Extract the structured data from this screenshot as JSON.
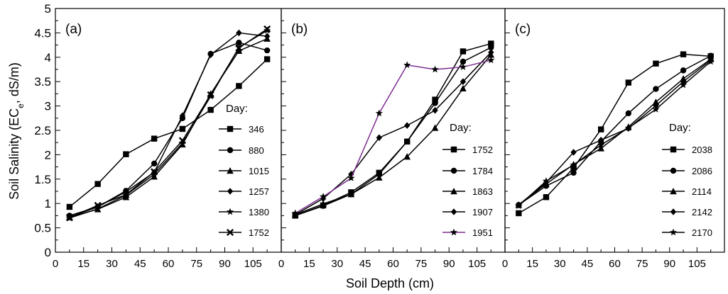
{
  "figure": {
    "ylabel_prefix": "Soil Salinity (EC",
    "ylabel_sub": "e",
    "ylabel_suffix": ", dS/m)",
    "xlabel": "Soil Depth (cm)"
  },
  "chart_data": [
    {
      "type": "line",
      "panel_label": "(a)",
      "legend_title": "Day:",
      "legend_position": "right-middle",
      "xlim": [
        0,
        120
      ],
      "ylim": [
        0,
        5
      ],
      "x_ticks": [
        0,
        15,
        30,
        45,
        60,
        75,
        90,
        105
      ],
      "y_ticks": [
        0,
        0.5,
        1,
        1.5,
        2,
        2.5,
        3,
        3.5,
        4,
        4.5,
        5
      ],
      "y_tick_labels": [
        "0",
        "0.5",
        "1",
        "1.5",
        "2",
        "2.5",
        "3",
        "3.5",
        "4",
        "4.5",
        "5"
      ],
      "x": [
        7.5,
        22.5,
        37.5,
        52.5,
        67.5,
        82.5,
        97.5,
        112.5
      ],
      "series": [
        {
          "name": "346",
          "marker": "square",
          "color": "#000000",
          "values": [
            0.93,
            1.4,
            2.01,
            2.33,
            2.53,
            2.92,
            3.41,
            3.96
          ]
        },
        {
          "name": "880",
          "marker": "circle",
          "color": "#000000",
          "values": [
            0.75,
            0.93,
            1.26,
            1.82,
            2.75,
            4.07,
            4.3,
            4.14
          ]
        },
        {
          "name": "1015",
          "marker": "triangle",
          "color": "#000000",
          "values": [
            0.72,
            0.88,
            1.13,
            1.55,
            2.21,
            3.25,
            4.13,
            4.38
          ]
        },
        {
          "name": "1257",
          "marker": "diamond",
          "color": "#000000",
          "values": [
            0.72,
            0.93,
            1.24,
            1.64,
            2.8,
            4.05,
            4.5,
            4.43
          ]
        },
        {
          "name": "1380",
          "marker": "star",
          "color": "#000000",
          "values": [
            0.7,
            0.89,
            1.17,
            1.6,
            2.24,
            3.2,
            4.2,
            4.55
          ]
        },
        {
          "name": "1752",
          "marker": "x",
          "color": "#000000",
          "values": [
            0.71,
            0.96,
            1.18,
            1.65,
            2.29,
            3.23,
            4.19,
            4.58
          ]
        }
      ]
    },
    {
      "type": "line",
      "panel_label": "(b)",
      "legend_title": "Day:",
      "legend_position": "right-middle",
      "xlim": [
        0,
        120
      ],
      "ylim": [
        0,
        5
      ],
      "x_ticks": [
        0,
        15,
        30,
        45,
        60,
        75,
        90,
        105
      ],
      "x": [
        7.5,
        22.5,
        37.5,
        52.5,
        67.5,
        82.5,
        97.5,
        112.5
      ],
      "series": [
        {
          "name": "1752",
          "marker": "square",
          "color": "#000000",
          "values": [
            0.75,
            0.96,
            1.23,
            1.63,
            2.27,
            3.13,
            4.12,
            4.28
          ]
        },
        {
          "name": "1784",
          "marker": "circle",
          "color": "#000000",
          "values": [
            0.75,
            0.95,
            1.19,
            1.6,
            2.27,
            3.06,
            3.91,
            4.2
          ]
        },
        {
          "name": "1863",
          "marker": "triangle",
          "color": "#000000",
          "values": [
            0.77,
            0.99,
            1.19,
            1.53,
            1.96,
            2.55,
            3.36,
            4.05
          ]
        },
        {
          "name": "1907",
          "marker": "diamond",
          "color": "#000000",
          "values": [
            0.77,
            1.1,
            1.6,
            2.35,
            2.6,
            2.91,
            3.5,
            4.1
          ]
        },
        {
          "name": "1951",
          "marker": "star",
          "color": "#7b2d8e",
          "values": [
            0.8,
            1.14,
            1.52,
            2.85,
            3.84,
            3.75,
            3.8,
            3.94
          ]
        }
      ]
    },
    {
      "type": "line",
      "panel_label": "(c)",
      "legend_title": "Day:",
      "legend_position": "right-middle",
      "xlim": [
        0,
        120
      ],
      "ylim": [
        0,
        5
      ],
      "x_ticks": [
        0,
        15,
        30,
        45,
        60,
        75,
        90,
        105
      ],
      "x": [
        7.5,
        22.5,
        37.5,
        52.5,
        67.5,
        82.5,
        97.5,
        112.5
      ],
      "series": [
        {
          "name": "2038",
          "marker": "square",
          "color": "#000000",
          "values": [
            0.8,
            1.13,
            1.73,
            2.52,
            3.48,
            3.87,
            4.06,
            4.02
          ]
        },
        {
          "name": "2086",
          "marker": "circle",
          "color": "#000000",
          "values": [
            0.97,
            1.36,
            1.63,
            2.27,
            2.85,
            3.35,
            3.73,
            4.03
          ]
        },
        {
          "name": "2114",
          "marker": "triangle",
          "color": "#000000",
          "values": [
            0.97,
            1.4,
            1.8,
            2.13,
            2.57,
            3.08,
            3.56,
            3.96
          ]
        },
        {
          "name": "2142",
          "marker": "diamond",
          "color": "#000000",
          "values": [
            0.97,
            1.43,
            2.05,
            2.3,
            2.54,
            3.01,
            3.5,
            3.94
          ]
        },
        {
          "name": "2170",
          "marker": "star",
          "color": "#000000",
          "values": [
            0.95,
            1.46,
            1.79,
            2.2,
            2.55,
            2.93,
            3.43,
            3.91
          ]
        }
      ]
    }
  ]
}
